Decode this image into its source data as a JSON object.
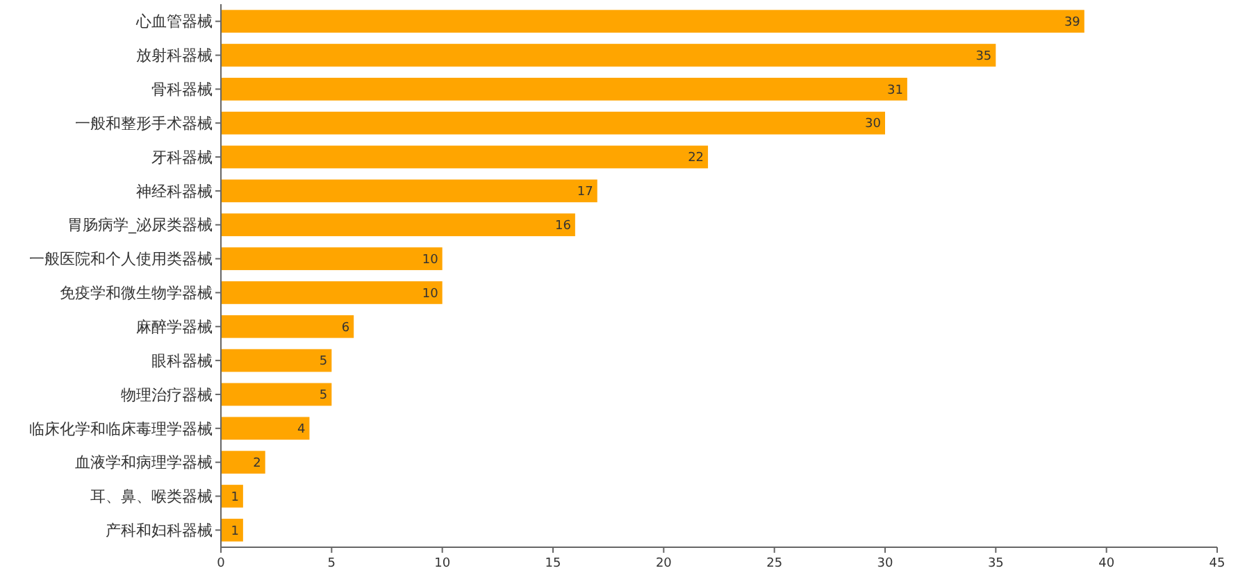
{
  "chart_data": {
    "type": "bar",
    "orientation": "horizontal",
    "categories": [
      "心血管器械",
      "放射科器械",
      "骨科器械",
      "一般和整形手术器械",
      "牙科器械",
      "神经科器械",
      "胃肠病学_泌尿类器械",
      "一般医院和个人使用类器械",
      "免疫学和微生物学器械",
      "麻醉学器械",
      "眼科器械",
      "物理治疗器械",
      "临床化学和临床毒理学器械",
      "血液学和病理学器械",
      "耳、鼻、喉类器械",
      "产科和妇科器械"
    ],
    "values": [
      39,
      35,
      31,
      30,
      22,
      17,
      16,
      10,
      10,
      6,
      5,
      5,
      4,
      2,
      1,
      1
    ],
    "color": "#ffa500",
    "xlim": [
      0,
      45
    ],
    "xticks": [
      0,
      5,
      10,
      15,
      20,
      25,
      30,
      35,
      40,
      45
    ],
    "data_labels": true,
    "grid": false
  }
}
